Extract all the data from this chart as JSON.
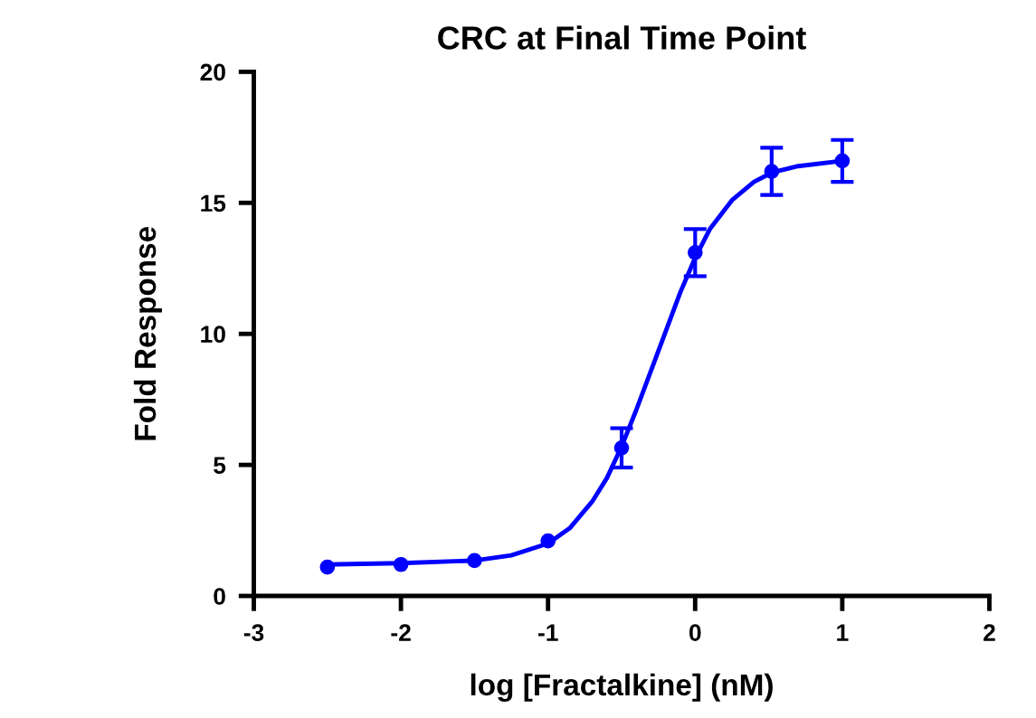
{
  "chart_data": {
    "type": "scatter",
    "title": "CRC at Final Time Point",
    "xlabel": "log [Fractalkine] (nM)",
    "ylabel": "Fold Response",
    "x": [
      -2.5,
      -2,
      -1.5,
      -1,
      -0.5,
      0,
      0.52,
      1
    ],
    "series": [
      {
        "color": "#0000ff",
        "marker": "circle",
        "values": [
          1.1,
          1.2,
          1.35,
          2.1,
          5.65,
          13.1,
          16.2,
          16.6
        ],
        "errors": [
          null,
          null,
          null,
          null,
          0.75,
          0.9,
          0.9,
          0.8
        ]
      },
      {
        "type": "line",
        "color": "#0000ff",
        "line_style": "solid",
        "x": [
          -2.5,
          -2,
          -1.5,
          -1.25,
          -1,
          -0.85,
          -0.7,
          -0.6,
          -0.5,
          -0.4,
          -0.3,
          -0.2,
          -0.1,
          0,
          0.1,
          0.25,
          0.4,
          0.52,
          0.7,
          1
        ],
        "values": [
          1.2,
          1.25,
          1.35,
          1.55,
          2.0,
          2.6,
          3.6,
          4.5,
          5.7,
          7.1,
          8.6,
          10.1,
          11.6,
          12.9,
          14.0,
          15.1,
          15.8,
          16.15,
          16.4,
          16.6
        ]
      }
    ],
    "xlim": [
      -3,
      2
    ],
    "xticks": [
      -3,
      -2,
      -1,
      0,
      1,
      2
    ],
    "ylim": [
      0,
      20
    ],
    "yticks": [
      0,
      5,
      10,
      15,
      20
    ],
    "grid": false,
    "legend": false
  }
}
